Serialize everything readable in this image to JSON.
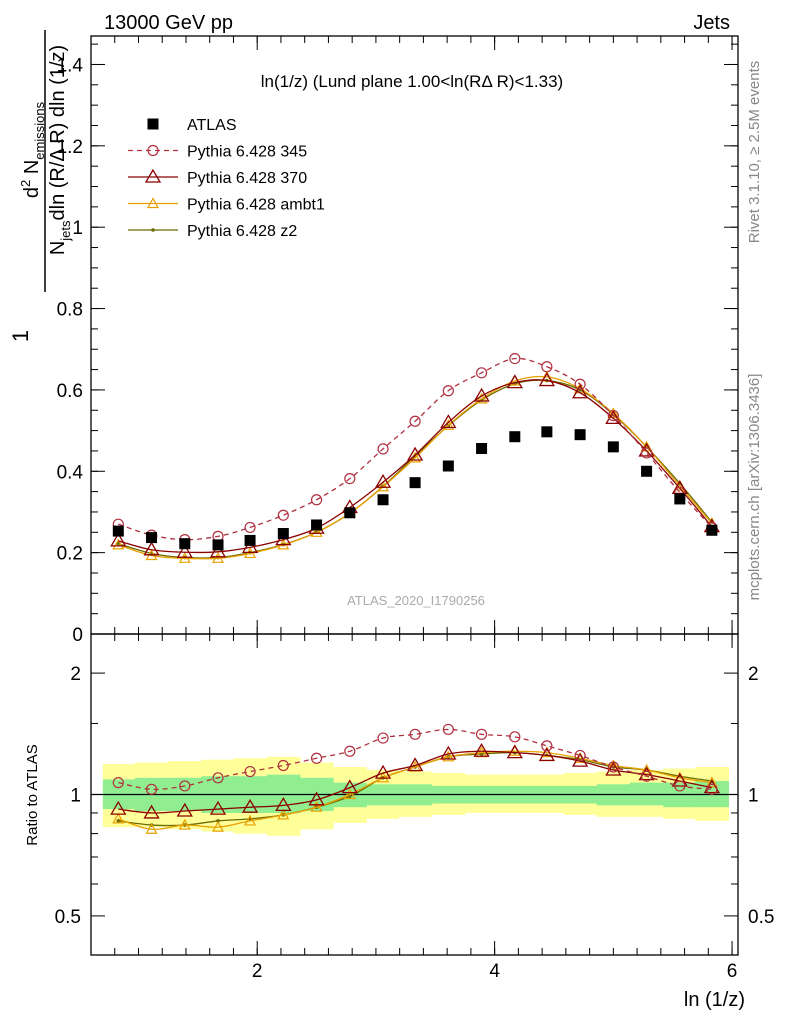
{
  "header": {
    "left": "13000 GeV pp",
    "right": "Jets"
  },
  "side_labels": {
    "rivet": "Rivet 3.1.10, ≥ 2.5M events",
    "mcplots": "mcplots.cern.ch [arXiv:1306.3436]"
  },
  "watermark": "ATLAS_2020_I1790256",
  "colors": {
    "atlas": "#000000",
    "p345": "#b03040",
    "p370": "#8b0000",
    "ambt1": "#e8a000",
    "z2": "#6b6b00",
    "band_outer": "#ffff99",
    "band_inner": "#90ee90"
  },
  "chart_data": [
    {
      "type": "scatter",
      "title": "ln(1/z) (Lund plane 1.00<ln(RΔ R)<1.33)",
      "ylabel_parts": {
        "frac_one": "1",
        "denom_a": "N",
        "denom_a_sub": "jets",
        "denom_b": "dln (R/Δ R) dln (1/z)",
        "num_a": "d",
        "num_a_sup": "2",
        "num_b": " N",
        "num_b_sub": "emissions"
      },
      "xlim": [
        0.6,
        6.05
      ],
      "ylim": [
        0,
        1.47
      ],
      "yticks": [
        0,
        0.2,
        0.4,
        0.6,
        0.8,
        1,
        1.2,
        1.4
      ],
      "ytick_labels": [
        "0",
        "0.2",
        "0.4",
        "0.6",
        "0.8",
        "1",
        "1.2",
        "1.4"
      ],
      "x": [
        0.83,
        1.11,
        1.39,
        1.67,
        1.94,
        2.22,
        2.5,
        2.78,
        3.06,
        3.33,
        3.61,
        3.89,
        4.17,
        4.44,
        4.72,
        5.0,
        5.28,
        5.56,
        5.83
      ],
      "series": [
        {
          "name": "ATLAS",
          "marker": "square",
          "values": [
            0.253,
            0.237,
            0.222,
            0.219,
            0.23,
            0.247,
            0.268,
            0.298,
            0.33,
            0.372,
            0.413,
            0.456,
            0.485,
            0.497,
            0.49,
            0.46,
            0.4,
            0.332,
            0.255
          ]
        },
        {
          "name": "Pythia 6.428 345",
          "marker": "circle",
          "dashed": true,
          "values": [
            0.27,
            0.243,
            0.232,
            0.24,
            0.262,
            0.292,
            0.33,
            0.382,
            0.455,
            0.523,
            0.598,
            0.642,
            0.677,
            0.657,
            0.614,
            0.537,
            0.445,
            0.348,
            0.262
          ]
        },
        {
          "name": "Pythia 6.428 370",
          "marker": "triangle-open",
          "values": [
            0.229,
            0.207,
            0.201,
            0.202,
            0.213,
            0.232,
            0.26,
            0.311,
            0.373,
            0.44,
            0.52,
            0.585,
            0.618,
            0.623,
            0.593,
            0.53,
            0.45,
            0.358,
            0.264
          ]
        },
        {
          "name": "Pythia 6.428 ambt1",
          "marker": "triangle-small",
          "values": [
            0.219,
            0.193,
            0.186,
            0.186,
            0.198,
            0.219,
            0.25,
            0.297,
            0.362,
            0.433,
            0.513,
            0.578,
            0.622,
            0.632,
            0.603,
            0.542,
            0.46,
            0.364,
            0.272
          ]
        },
        {
          "name": "Pythia 6.428 z2",
          "marker": "dot",
          "values": [
            0.222,
            0.198,
            0.188,
            0.188,
            0.2,
            0.22,
            0.25,
            0.297,
            0.363,
            0.437,
            0.512,
            0.575,
            0.615,
            0.623,
            0.6,
            0.54,
            0.46,
            0.37,
            0.275
          ]
        }
      ]
    },
    {
      "type": "line",
      "ylabel": "Ratio to ATLAS",
      "xlabel": "ln (1/z)",
      "log_y": true,
      "ylim": [
        0.4,
        2.5
      ],
      "yticks": [
        0.5,
        1,
        2
      ],
      "ytick_labels": [
        "0.5",
        "1",
        "2"
      ],
      "xticks": [
        2,
        4,
        6
      ],
      "xtick_labels": [
        "2",
        "4",
        "6"
      ],
      "x_edges": [
        0.7,
        0.97,
        1.25,
        1.53,
        1.8,
        2.08,
        2.36,
        2.64,
        2.92,
        3.19,
        3.47,
        3.75,
        4.03,
        4.31,
        4.58,
        4.86,
        5.14,
        5.42,
        5.69,
        5.97
      ],
      "band_outer_lo": [
        0.83,
        0.83,
        0.82,
        0.81,
        0.8,
        0.79,
        0.82,
        0.85,
        0.87,
        0.88,
        0.89,
        0.9,
        0.9,
        0.9,
        0.89,
        0.88,
        0.88,
        0.87,
        0.86
      ],
      "band_outer_hi": [
        1.19,
        1.2,
        1.21,
        1.22,
        1.23,
        1.24,
        1.2,
        1.17,
        1.15,
        1.14,
        1.13,
        1.12,
        1.12,
        1.12,
        1.13,
        1.14,
        1.15,
        1.16,
        1.17
      ],
      "band_inner_lo": [
        0.92,
        0.91,
        0.91,
        0.9,
        0.9,
        0.9,
        0.91,
        0.93,
        0.94,
        0.94,
        0.95,
        0.95,
        0.95,
        0.95,
        0.95,
        0.94,
        0.94,
        0.93,
        0.93
      ],
      "band_inner_hi": [
        1.09,
        1.1,
        1.1,
        1.11,
        1.11,
        1.12,
        1.1,
        1.07,
        1.06,
        1.06,
        1.05,
        1.05,
        1.05,
        1.05,
        1.05,
        1.06,
        1.07,
        1.07,
        1.08
      ],
      "series": [
        {
          "name": "Pythia 6.428 345",
          "values": [
            1.07,
            1.03,
            1.05,
            1.1,
            1.14,
            1.18,
            1.23,
            1.28,
            1.38,
            1.41,
            1.45,
            1.41,
            1.39,
            1.32,
            1.25,
            1.17,
            1.11,
            1.05,
            1.03
          ]
        },
        {
          "name": "Pythia 6.428 370",
          "values": [
            0.92,
            0.9,
            0.91,
            0.92,
            0.93,
            0.94,
            0.97,
            1.04,
            1.13,
            1.18,
            1.26,
            1.28,
            1.27,
            1.25,
            1.21,
            1.15,
            1.12,
            1.08,
            1.04
          ]
        },
        {
          "name": "Pythia 6.428 ambt1",
          "values": [
            0.87,
            0.82,
            0.84,
            0.83,
            0.86,
            0.89,
            0.93,
            1.0,
            1.1,
            1.17,
            1.24,
            1.27,
            1.28,
            1.27,
            1.23,
            1.18,
            1.15,
            1.1,
            1.07
          ]
        },
        {
          "name": "Pythia 6.428 z2",
          "values": [
            0.86,
            0.84,
            0.84,
            0.86,
            0.87,
            0.89,
            0.93,
            0.99,
            1.1,
            1.17,
            1.24,
            1.26,
            1.27,
            1.25,
            1.22,
            1.17,
            1.15,
            1.11,
            1.08
          ]
        }
      ]
    }
  ]
}
